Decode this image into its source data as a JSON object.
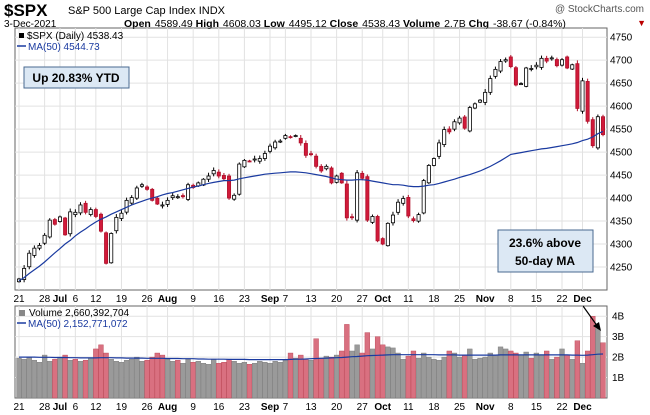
{
  "header": {
    "symbol": "$SPX",
    "name": "S&P 500 Large Cap Index",
    "exchange": "INDX",
    "watermark": "@ StockCharts.com",
    "date": "3-Dec-2021",
    "open_label": "Open",
    "open": "4589.49",
    "high_label": "High",
    "high": "4608.03",
    "low_label": "Low",
    "low": "4495.12",
    "close_label": "Close",
    "close": "4538.43",
    "volume_label": "Volume",
    "volume": "2.7B",
    "chg_label": "Chg",
    "chg": "-38.67 (-0.84%)",
    "marker": "▼"
  },
  "legend": {
    "price": "$SPX (Daily) 4538.43",
    "ma": "MA(50) 4544.73",
    "volume": "Volume 2,660,392,704",
    "vol_ma": "MA(50) 2,152,771,072"
  },
  "annotations": {
    "ytd": "Up 20.83% YTD",
    "above_line1": "23.6% above",
    "above_line2": "50-day MA"
  },
  "chart_data": [
    {
      "type": "candlestick",
      "symbol": "$SPX",
      "ylim": [
        4200,
        4770
      ],
      "y_ticks": [
        4250,
        4300,
        4350,
        4400,
        4450,
        4500,
        4550,
        4600,
        4650,
        4700,
        4750
      ],
      "x_tick_labels": [
        "21",
        "28",
        "Jul",
        "6",
        "12",
        "19",
        "26",
        "Aug",
        "9",
        "16",
        "23",
        "Sep",
        "7",
        "13",
        "20",
        "27",
        "Oct",
        "11",
        "18",
        "25",
        "Nov",
        "8",
        "15",
        "22",
        "Dec"
      ],
      "close_series": [
        4224,
        4247,
        4280,
        4291,
        4297,
        4319,
        4352,
        4343,
        4359,
        4320,
        4370,
        4369,
        4385,
        4369,
        4375,
        4360,
        4328,
        4258,
        4323,
        4358,
        4367,
        4395,
        4401,
        4422,
        4429,
        4419,
        4395,
        4387,
        4385,
        4395,
        4405,
        4403,
        4403,
        4429,
        4423,
        4433,
        4441,
        4448,
        4460,
        4448,
        4442,
        4400,
        4406,
        4474,
        4482,
        4480,
        4485,
        4486,
        4497,
        4513,
        4522,
        4524,
        4536,
        4532,
        4536,
        4520,
        4493,
        4496,
        4469,
        4459,
        4469,
        4433,
        4448,
        4433,
        4357,
        4358,
        4455,
        4443,
        4352,
        4360,
        4307,
        4300,
        4345,
        4363,
        4391,
        4399,
        4361,
        4351,
        4364,
        4438,
        4471,
        4486,
        4520,
        4549,
        4544,
        4566,
        4574,
        4552,
        4597,
        4605,
        4613,
        4630,
        4660,
        4680,
        4697,
        4701,
        4686,
        4646,
        4649,
        4683,
        4682,
        4689,
        4704,
        4698,
        4705,
        4688,
        4701,
        4683,
        4690,
        4595,
        4655,
        4567,
        4514,
        4577,
        4538
      ],
      "ma50_series": [
        4220,
        4227,
        4236,
        4244,
        4252,
        4261,
        4271,
        4281,
        4290,
        4300,
        4308,
        4318,
        4326,
        4333,
        4341,
        4348,
        4354,
        4359,
        4365,
        4370,
        4375,
        4380,
        4385,
        4389,
        4393,
        4397,
        4400,
        4403,
        4407,
        4410,
        4412,
        4415,
        4418,
        4421,
        4424,
        4426,
        4429,
        4432,
        4434,
        4436,
        4438,
        4438,
        4439,
        4442,
        4444,
        4446,
        4448,
        4450,
        4452,
        4453,
        4454,
        4455,
        4456,
        4457,
        4457,
        4456,
        4455,
        4453,
        4451,
        4449,
        4447,
        4444,
        4441,
        4440,
        4439,
        4439,
        4440,
        4440,
        4439,
        4437,
        4435,
        4433,
        4431,
        4429,
        4429,
        4428,
        4426,
        4425,
        4425,
        4426,
        4428,
        4429,
        4432,
        4435,
        4438,
        4441,
        4445,
        4448,
        4451,
        4455,
        4459,
        4464,
        4469,
        4475,
        4481,
        4488,
        4495,
        4497,
        4499,
        4501,
        4503,
        4505,
        4507,
        4508,
        4510,
        4512,
        4514,
        4516,
        4518,
        4521,
        4525,
        4528,
        4533,
        4540,
        4545
      ]
    },
    {
      "type": "bar",
      "series_name": "Volume",
      "ylim": [
        0,
        4.5
      ],
      "y_ticks_label": [
        "1B",
        "2B",
        "3B",
        "4B"
      ],
      "y_ticks": [
        1,
        2,
        3,
        4
      ],
      "volume_B": [
        1.95,
        1.9,
        2.0,
        1.85,
        1.75,
        2.1,
        1.8,
        1.9,
        2.0,
        2.1,
        1.85,
        1.9,
        1.8,
        1.85,
        1.95,
        2.4,
        2.6,
        2.2,
        1.9,
        1.8,
        1.75,
        1.85,
        1.9,
        2.0,
        1.8,
        1.85,
        2.0,
        2.2,
        2.1,
        1.9,
        1.8,
        1.85,
        1.7,
        1.9,
        1.75,
        1.8,
        1.7,
        1.65,
        1.9,
        1.7,
        1.75,
        1.9,
        1.8,
        1.7,
        1.75,
        1.65,
        1.7,
        1.8,
        1.75,
        1.7,
        1.8,
        1.75,
        1.85,
        2.2,
        1.95,
        2.1,
        1.9,
        1.85,
        2.9,
        1.95,
        2.05,
        2.0,
        2.1,
        2.3,
        3.6,
        2.3,
        2.6,
        2.2,
        3.2,
        2.4,
        3.0,
        2.6,
        2.5,
        2.45,
        2.2,
        1.9,
        2.05,
        2.3,
        1.95,
        2.2,
        2.0,
        1.9,
        1.85,
        2.0,
        2.3,
        2.2,
        2.0,
        2.1,
        2.4,
        1.9,
        1.95,
        2.0,
        2.2,
        2.1,
        2.5,
        2.4,
        2.3,
        2.2,
        2.1,
        2.25,
        1.95,
        2.2,
        2.1,
        2.3,
        1.9,
        2.0,
        2.4,
        2.1,
        1.9,
        2.8,
        1.7,
        2.3,
        4.0,
        3.4,
        2.7
      ],
      "ma50_B": [
        2.0,
        2.0,
        2.0,
        2.0,
        1.99,
        1.99,
        1.99,
        1.98,
        1.98,
        1.98,
        1.97,
        1.97,
        1.96,
        1.96,
        1.96,
        1.96,
        1.97,
        1.97,
        1.97,
        1.96,
        1.96,
        1.95,
        1.95,
        1.95,
        1.95,
        1.94,
        1.94,
        1.94,
        1.94,
        1.93,
        1.93,
        1.93,
        1.92,
        1.92,
        1.92,
        1.91,
        1.91,
        1.9,
        1.9,
        1.9,
        1.9,
        1.89,
        1.89,
        1.89,
        1.89,
        1.88,
        1.88,
        1.88,
        1.88,
        1.88,
        1.88,
        1.88,
        1.88,
        1.89,
        1.9,
        1.9,
        1.91,
        1.92,
        1.93,
        1.94,
        1.95,
        1.96,
        1.97,
        1.98,
        2.0,
        2.02,
        2.03,
        2.05,
        2.07,
        2.08,
        2.09,
        2.1,
        2.11,
        2.12,
        2.12,
        2.12,
        2.12,
        2.12,
        2.12,
        2.12,
        2.12,
        2.12,
        2.11,
        2.11,
        2.11,
        2.11,
        2.1,
        2.1,
        2.1,
        2.1,
        2.1,
        2.1,
        2.1,
        2.1,
        2.11,
        2.11,
        2.11,
        2.11,
        2.11,
        2.11,
        2.11,
        2.11,
        2.11,
        2.11,
        2.11,
        2.11,
        2.11,
        2.11,
        2.1,
        2.1,
        2.09,
        2.1,
        2.12,
        2.14,
        2.15
      ]
    }
  ]
}
